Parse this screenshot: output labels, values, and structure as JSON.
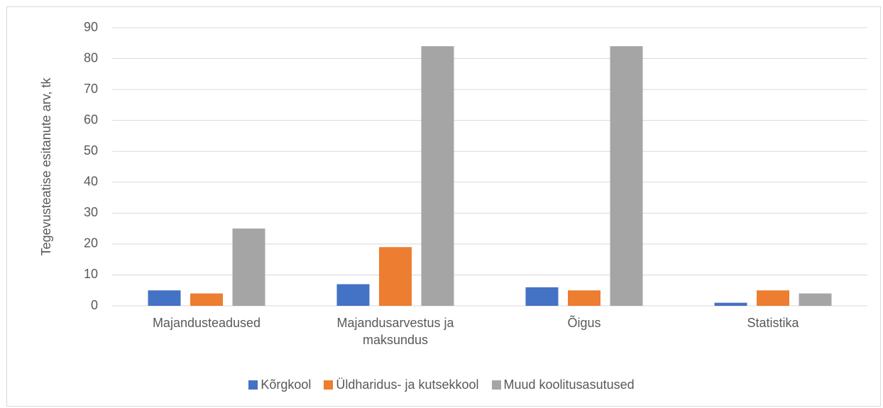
{
  "chart_data": {
    "type": "bar",
    "y_label": "Tegevusteatise esitanute arv, tk",
    "categories": [
      "Majandusteadused",
      "Majandusarvestus ja maksundus",
      "Õigus",
      "Statistika"
    ],
    "series": [
      {
        "name": "Kõrgkool",
        "color": "#4472c4",
        "values": [
          5,
          7,
          6,
          1
        ]
      },
      {
        "name": "Üldharidus- ja kutsekkool",
        "color": "#ed7d31",
        "values": [
          4,
          19,
          5,
          5
        ]
      },
      {
        "name": "Muud koolitusasutused",
        "color": "#a5a5a5",
        "values": [
          25,
          84,
          84,
          4
        ]
      }
    ],
    "ylim": [
      0,
      90
    ],
    "yticks": [
      0,
      10,
      20,
      30,
      40,
      50,
      60,
      70,
      80,
      90
    ],
    "grid": true,
    "legend": "bottom"
  }
}
